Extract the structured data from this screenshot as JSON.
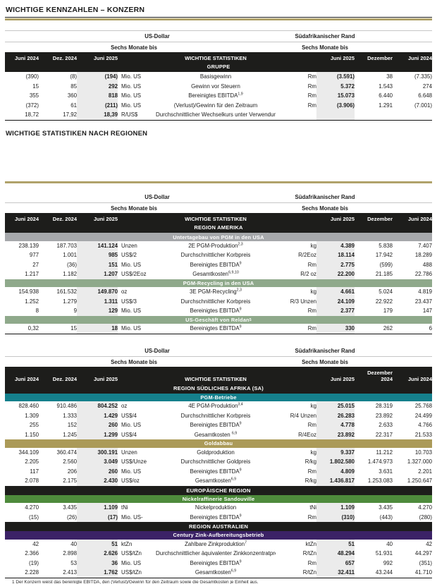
{
  "page": {
    "title": "WICHTIGE KENNZAHLEN – KONZERN",
    "regions_heading": "WICHTIGE STATISTIKEN NACH REGIONEN",
    "footnote": "1 Der Konzern weist das bereinigte EBITDA, den (Verlust)/Gewinn für den Zeitraum sowie die Gesamtkosten je Einheit aus."
  },
  "labels": {
    "usd": "US-Dollar",
    "rand": "Südafrikanischer Rand",
    "six_months": "Sechs Monate bis"
  },
  "colors": {
    "accent_gold": "#b0a26a",
    "header_black": "#1d1d1b",
    "band_gray": "#a6a8ab",
    "band_sage": "#8fa98b",
    "band_teal": "#15808c",
    "band_gold": "#ab9a58",
    "band_green": "#4e8b3c",
    "band_purple": "#3b2266",
    "col_shade": "#ebebeb"
  },
  "tables": [
    {
      "id": "gruppe",
      "top_thin": true,
      "header": {
        "usd_cols": [
          "Juni 2024",
          "Dez. 2024",
          "Juni 2025"
        ],
        "center": "WICHTIGE STATISTIKEN",
        "sub": "GRUPPE",
        "rand_cols": [
          "Juni 2025",
          "Dezember",
          "Juni 2024"
        ]
      },
      "groups": [
        {
          "band": null,
          "rows": [
            [
              "(390)",
              "(8)",
              "(194)",
              "Mio. US",
              "Basisgewinn",
              "",
              "Rm",
              "(3.591)",
              "38",
              "(7.335)"
            ],
            [
              "15",
              "85",
              "292",
              "Mio. US",
              "Gewinn vor Steuern",
              "",
              "Rm",
              "5.372",
              "1.543",
              "274"
            ],
            [
              "355",
              "360",
              "818",
              "Mio. US",
              "Bereinigtes EBITDA",
              "1,9",
              "Rm",
              "15.073",
              "6.440",
              "6.648"
            ],
            [
              "(372)",
              "61",
              "(211)",
              "Mio. US",
              "(Verlust)/Gewinn für den Zeitraum",
              "",
              "Rm",
              "(3.906)",
              "1.291",
              "(7.001)"
            ],
            [
              "18,72",
              "17,92",
              "18,39",
              "R/US$",
              "Durchschnittlicher Wechselkurs unter Verwendung des",
              "",
              "",
              "",
              "",
              ""
            ]
          ]
        }
      ]
    },
    {
      "id": "amerika",
      "top_thin": false,
      "header": {
        "usd_cols": [
          "Juni 2024",
          "Dez. 2024",
          "Juni 2025"
        ],
        "center": "WICHTIGE STATISTIKEN",
        "sub": "REGION AMERIKA",
        "rand_cols": [
          "Juni 2025",
          "Dezember",
          "Juni 2024"
        ]
      },
      "groups": [
        {
          "band": {
            "text": "Untertagebau von PGM in den USA",
            "sup": "",
            "color": "#a6a8ab",
            "tall": false
          },
          "rows": [
            [
              "238.139",
              "187.703",
              "141.124",
              "Unzen",
              "2E PGM-Produktion",
              "2,3",
              "kg",
              "4.389",
              "5.838",
              "7.407"
            ],
            [
              "977",
              "1.001",
              "985",
              "US$/2",
              "Durchschnittlicher Korbpreis",
              "",
              "R/2Eoz",
              "18.114",
              "17.942",
              "18.289"
            ],
            [
              "27",
              "(36)",
              "151",
              "Mio. US",
              "Bereinigtes EBITDA",
              "9",
              "Rm",
              "2.775",
              "(599)",
              "488"
            ],
            [
              "1.217",
              "1.182",
              "1.207",
              "US$/2Eoz",
              "Gesamtkosten",
              "6,9,10",
              "R/2 oz",
              "22.200",
              "21.185",
              "22.786"
            ]
          ]
        },
        {
          "band": {
            "text": "PGM-Recycling in den USA",
            "sup": "",
            "color": "#8fa98b",
            "tall": false
          },
          "rows": [
            [
              "154.938",
              "161.532",
              "149.870",
              "oz",
              "3E PGM-Recycling",
              "2,3",
              "kg",
              "4.661",
              "5.024",
              "4.819"
            ],
            [
              "1.252",
              "1.279",
              "1.311",
              "US$/3",
              "Durchschnittlicher Korbpreis",
              "",
              "R/3 Unzen",
              "24.109",
              "22.922",
              "23.437"
            ],
            [
              "8",
              "9",
              "129",
              "Mio. US",
              "Bereinigtes EBITDA",
              "9",
              "Rm",
              "2.377",
              "179",
              "147"
            ]
          ]
        },
        {
          "band": {
            "text": "US-Geschäft von Reldan",
            "sup": "5",
            "color": "#8fa98b",
            "tall": false
          },
          "rows": [
            [
              "0,32",
              "15",
              "18",
              "Mio. US",
              "Bereinigtes EBITDA",
              "9",
              "Rm",
              "330",
              "262",
              "6"
            ]
          ]
        }
      ]
    },
    {
      "id": "sa",
      "top_thin": false,
      "header": {
        "usd_cols": [
          "Juni 2024",
          "Dez. 2024",
          "Juni 2025"
        ],
        "center": "WICHTIGE STATISTIKEN",
        "sub": "REGION SÜDLICHES AFRIKA (SA)",
        "rand_cols": [
          "Juni 2025",
          "Dezember 2024",
          "Juni 2024"
        ]
      },
      "groups": [
        {
          "band": {
            "text": "PGM-Betriebe",
            "sup": "",
            "color": "#15808c",
            "tall": false
          },
          "rows": [
            [
              "828.460",
              "910.486",
              "804.252",
              "oz",
              "4E PGM-Produktion",
              "3,4",
              "kg",
              "25.015",
              "28.319",
              "25.768"
            ],
            [
              "1.309",
              "1.333",
              "1.429",
              "US$/4",
              "Durchschnittlicher Korbpreis",
              "",
              "R/4 Unzen",
              "26.283",
              "23.892",
              "24.499"
            ],
            [
              "255",
              "152",
              "260",
              "Mio. US",
              "Bereinigtes EBITDA",
              "9",
              "Rm",
              "4.778",
              "2.633",
              "4.766"
            ],
            [
              "1.150",
              "1.245",
              "1.299",
              "US$/4",
              "Gesamtkosten ",
              "6,9",
              "R/4Eoz",
              "23.892",
              "22.317",
              "21.533"
            ]
          ]
        },
        {
          "band": {
            "text": "Goldabbau",
            "sup": "",
            "color": "#ab9a58",
            "tall": false
          },
          "rows": [
            [
              "344.109",
              "360.474",
              "300.191",
              "Unzen",
              "Goldproduktion",
              "",
              "kg",
              "9.337",
              "11.212",
              "10.703"
            ],
            [
              "2.205",
              "2.560",
              "3.049",
              "US$/Unze",
              "Durchschnittlicher Goldpreis",
              "",
              "R/kg",
              "1.802.580",
              "1.474.973",
              "1.327.000"
            ],
            [
              "117",
              "206",
              "260",
              "Mio. US",
              "Bereinigtes EBITDA",
              "9",
              "Rm",
              "4.809",
              "3.631",
              "2.201"
            ],
            [
              "2.078",
              "2.175",
              "2.430",
              "US$/oz",
              "Gesamtkosten",
              "6,9",
              "R/kg",
              "1.436.817",
              "1.253.083",
              "1.250.647"
            ]
          ]
        },
        {
          "band": {
            "text": "EUROPÄISCHE REGION",
            "sup": "",
            "color": "#1d1d1b",
            "tall": true
          },
          "rows": []
        },
        {
          "band": {
            "text": "Nickelraffinerie Sandouville",
            "sup": "",
            "color": "#4e8b3c",
            "tall": false
          },
          "rows": [
            [
              "4.270",
              "3.435",
              "1.109",
              "tNi",
              "Nickelproduktion",
              "",
              "tNi",
              "1.109",
              "3.435",
              "4.270"
            ],
            [
              "(15)",
              "(26)",
              "(17)",
              "Mio. US-",
              "Bereinigtes EBITDA",
              "9",
              "Rm",
              "(310)",
              "(443)",
              "(280)"
            ]
          ]
        },
        {
          "band": {
            "text": "REGION AUSTRALIEN",
            "sup": "",
            "color": "#1d1d1b",
            "tall": true
          },
          "rows": []
        },
        {
          "band": {
            "text": "Century Zink-Aufbereitungsbetrieb",
            "sup": "",
            "color": "#3b2266",
            "tall": false
          },
          "rows": [
            [
              "42",
              "40",
              "51",
              "ktZn",
              "Zahlbare Zinkproduktion",
              "7",
              "ktZn",
              "51",
              "40",
              "42"
            ],
            [
              "2.366",
              "2.898",
              "2.626",
              "US$/tZn",
              "Durchschnittlicher äquivalenter Zinkkonzentratpreis",
              "8",
              "R/tZn",
              "48.294",
              "51.931",
              "44.297"
            ],
            [
              "(19)",
              "53",
              "36",
              "Mio. US",
              "Bereinigtes EBITDA",
              "9",
              "Rm",
              "657",
              "992",
              "(351)"
            ],
            [
              "2.228",
              "2.413",
              "1.762",
              "US$/tZn",
              "Gesamtkosten",
              "6,9",
              "R/tZn",
              "32.411",
              "43.244",
              "41.710"
            ]
          ]
        }
      ]
    }
  ]
}
